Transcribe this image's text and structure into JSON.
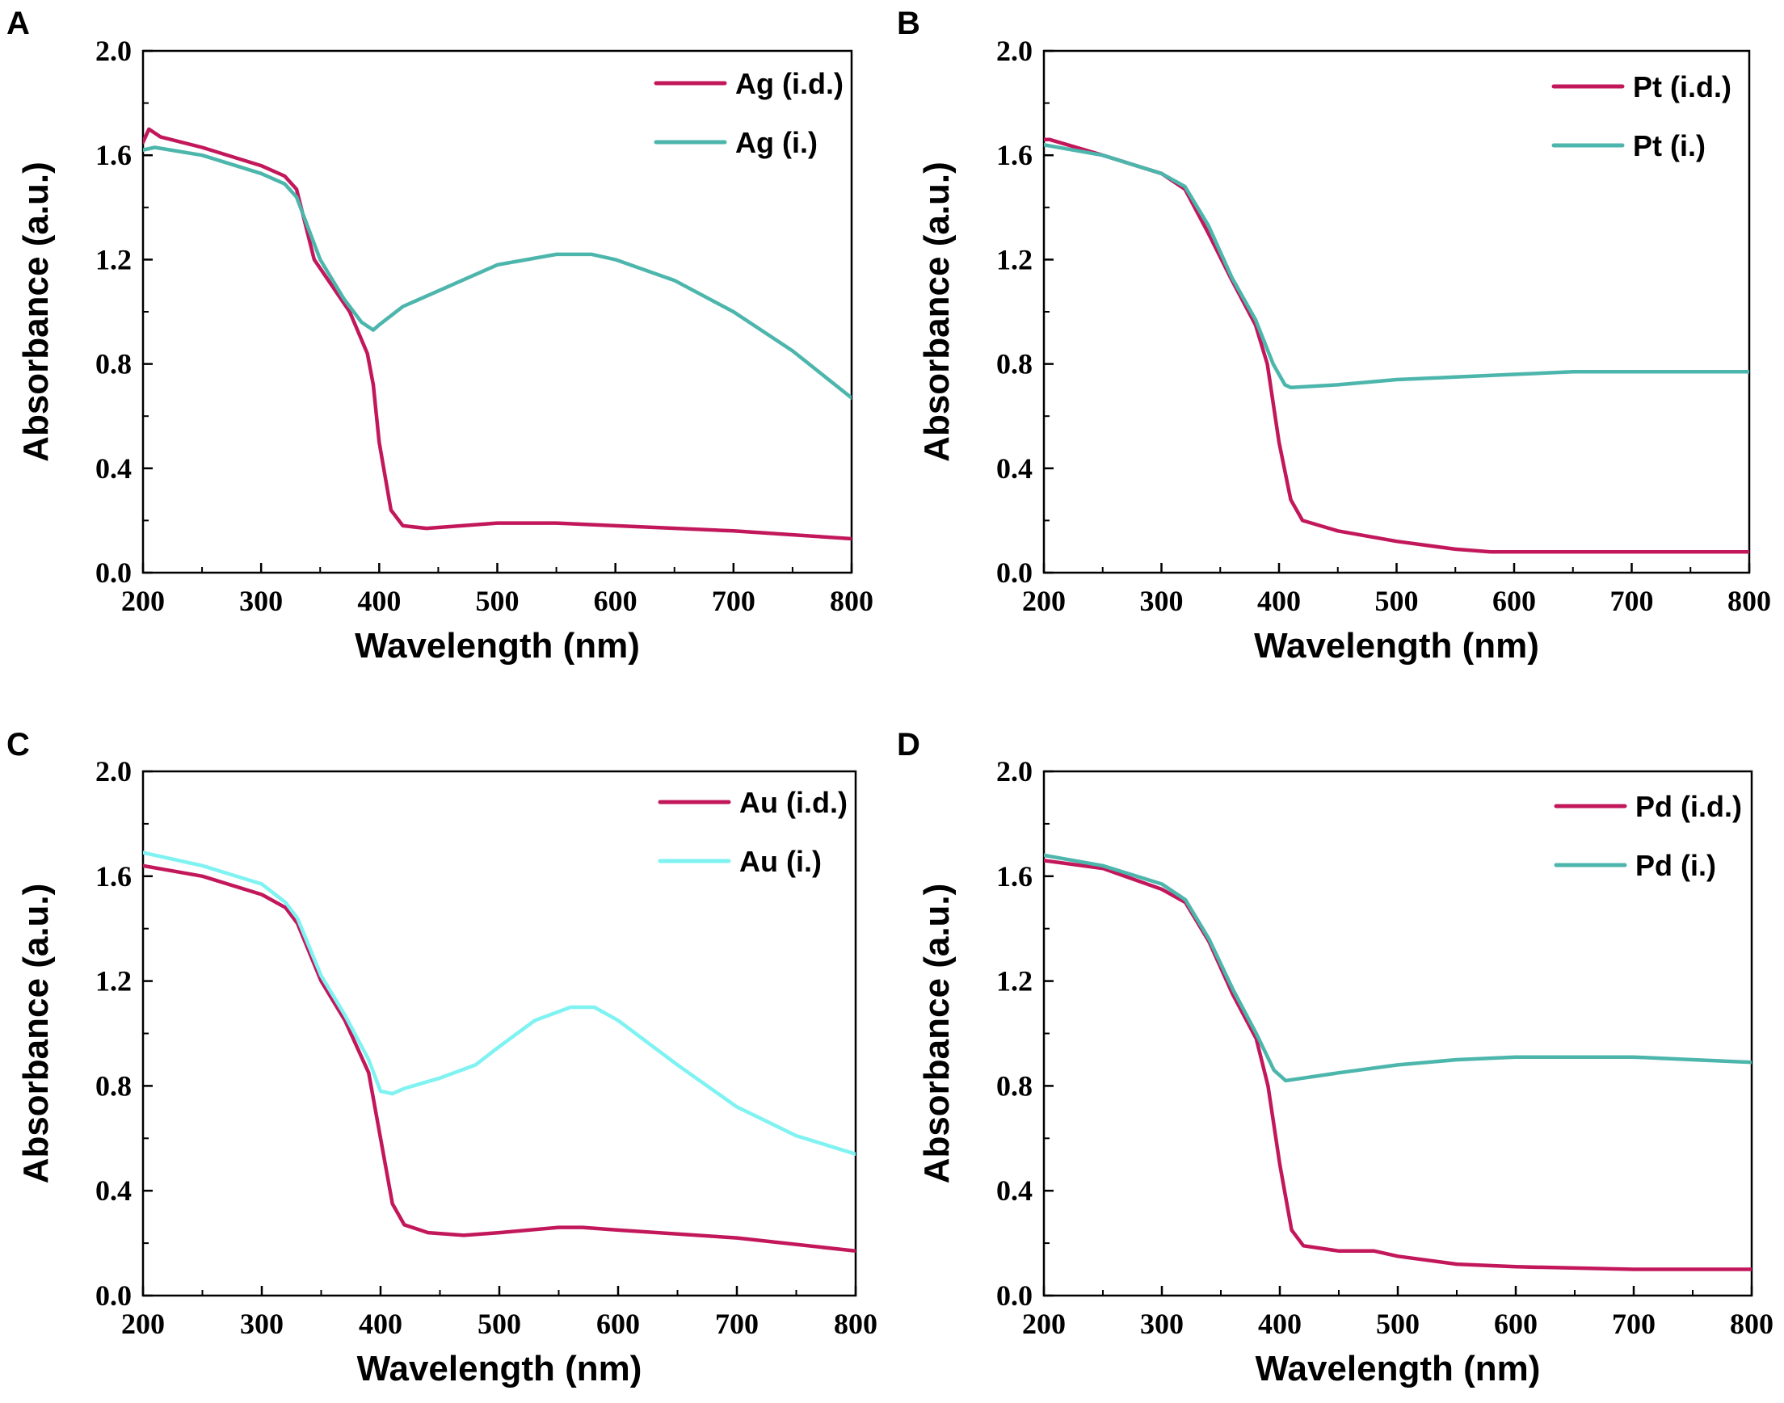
{
  "chart_data": [
    {
      "panel": "A",
      "type": "line",
      "xlabel": "Wavelength (nm)",
      "ylabel": "Absorbance (a.u.)",
      "xlim": [
        200,
        800
      ],
      "ylim": [
        0.0,
        2.0
      ],
      "xticks": [
        "200",
        "300",
        "400",
        "500",
        "600",
        "700",
        "800"
      ],
      "yticks": [
        "0.0",
        "0.4",
        "0.8",
        "1.2",
        "1.6",
        "2.0"
      ],
      "legend_position": "top-right",
      "series": [
        {
          "name": "Ag (i.d.)",
          "color": "#c2185b",
          "x": [
            200,
            205,
            215,
            250,
            300,
            320,
            330,
            345,
            360,
            375,
            390,
            395,
            400,
            410,
            420,
            440,
            470,
            500,
            550,
            600,
            700,
            800
          ],
          "y": [
            1.65,
            1.7,
            1.67,
            1.63,
            1.56,
            1.52,
            1.47,
            1.2,
            1.1,
            1.0,
            0.84,
            0.72,
            0.5,
            0.24,
            0.18,
            0.17,
            0.18,
            0.19,
            0.19,
            0.18,
            0.16,
            0.13
          ]
        },
        {
          "name": "Ag (i.)",
          "color": "#4db6ac",
          "x": [
            200,
            210,
            250,
            300,
            320,
            330,
            350,
            370,
            385,
            395,
            400,
            420,
            450,
            500,
            550,
            580,
            600,
            650,
            700,
            750,
            800
          ],
          "y": [
            1.62,
            1.63,
            1.6,
            1.53,
            1.49,
            1.44,
            1.2,
            1.05,
            0.96,
            0.93,
            0.95,
            1.02,
            1.08,
            1.18,
            1.22,
            1.22,
            1.2,
            1.12,
            1.0,
            0.85,
            0.67
          ]
        }
      ]
    },
    {
      "panel": "B",
      "type": "line",
      "xlabel": "Wavelength (nm)",
      "ylabel": "Absorbance (a.u.)",
      "xlim": [
        200,
        800
      ],
      "ylim": [
        0.0,
        2.0
      ],
      "xticks": [
        "200",
        "300",
        "400",
        "500",
        "600",
        "700",
        "800"
      ],
      "yticks": [
        "0.0",
        "0.4",
        "0.8",
        "1.2",
        "1.6",
        "2.0"
      ],
      "legend_position": "top-right",
      "series": [
        {
          "name": "Pt (i.d.)",
          "color": "#c2185b",
          "x": [
            200,
            205,
            250,
            300,
            320,
            340,
            360,
            380,
            390,
            400,
            410,
            420,
            450,
            500,
            550,
            580,
            600,
            700,
            800
          ],
          "y": [
            1.66,
            1.66,
            1.6,
            1.53,
            1.47,
            1.3,
            1.12,
            0.95,
            0.8,
            0.5,
            0.28,
            0.2,
            0.16,
            0.12,
            0.09,
            0.08,
            0.08,
            0.08,
            0.08
          ]
        },
        {
          "name": "Pt (i.)",
          "color": "#4db6ac",
          "x": [
            200,
            250,
            300,
            320,
            340,
            360,
            380,
            395,
            405,
            410,
            450,
            500,
            550,
            600,
            650,
            700,
            800
          ],
          "y": [
            1.64,
            1.6,
            1.53,
            1.48,
            1.33,
            1.13,
            0.97,
            0.8,
            0.72,
            0.71,
            0.72,
            0.74,
            0.75,
            0.76,
            0.77,
            0.77,
            0.77
          ]
        }
      ]
    },
    {
      "panel": "C",
      "type": "line",
      "xlabel": "Wavelength (nm)",
      "ylabel": "Absorbance (a.u.)",
      "xlim": [
        200,
        800
      ],
      "ylim": [
        0.0,
        2.0
      ],
      "xticks": [
        "200",
        "300",
        "400",
        "500",
        "600",
        "700",
        "800"
      ],
      "yticks": [
        "0.0",
        "0.4",
        "0.8",
        "1.2",
        "1.6",
        "2.0"
      ],
      "legend_position": "top-right",
      "series": [
        {
          "name": "Au (i.d.)",
          "color": "#c2185b",
          "x": [
            200,
            250,
            300,
            320,
            330,
            350,
            370,
            390,
            400,
            410,
            420,
            440,
            470,
            500,
            550,
            570,
            600,
            700,
            800
          ],
          "y": [
            1.64,
            1.6,
            1.53,
            1.48,
            1.42,
            1.2,
            1.05,
            0.85,
            0.6,
            0.35,
            0.27,
            0.24,
            0.23,
            0.24,
            0.26,
            0.26,
            0.25,
            0.22,
            0.17
          ]
        },
        {
          "name": "Au (i.)",
          "color": "#7ff2f2",
          "x": [
            200,
            250,
            300,
            320,
            330,
            350,
            370,
            390,
            400,
            410,
            420,
            450,
            480,
            500,
            530,
            560,
            580,
            600,
            650,
            700,
            750,
            800
          ],
          "y": [
            1.69,
            1.64,
            1.57,
            1.5,
            1.44,
            1.22,
            1.07,
            0.9,
            0.78,
            0.77,
            0.79,
            0.83,
            0.88,
            0.95,
            1.05,
            1.1,
            1.1,
            1.05,
            0.88,
            0.72,
            0.61,
            0.54
          ]
        }
      ]
    },
    {
      "panel": "D",
      "type": "line",
      "xlabel": "Wavelength (nm)",
      "ylabel": "Absorbance (a.u.)",
      "xlim": [
        200,
        800
      ],
      "ylim": [
        0.0,
        2.0
      ],
      "xticks": [
        "200",
        "300",
        "400",
        "500",
        "600",
        "700",
        "800"
      ],
      "yticks": [
        "0.0",
        "0.4",
        "0.8",
        "1.2",
        "1.6",
        "2.0"
      ],
      "legend_position": "top-right",
      "series": [
        {
          "name": "Pd (i.d.)",
          "color": "#c2185b",
          "x": [
            200,
            250,
            300,
            320,
            340,
            360,
            380,
            390,
            400,
            410,
            420,
            450,
            480,
            500,
            550,
            600,
            700,
            800
          ],
          "y": [
            1.66,
            1.63,
            1.55,
            1.5,
            1.35,
            1.15,
            0.98,
            0.8,
            0.5,
            0.25,
            0.19,
            0.17,
            0.17,
            0.15,
            0.12,
            0.11,
            0.1,
            0.1
          ]
        },
        {
          "name": "Pd (i.)",
          "color": "#4db6ac",
          "x": [
            200,
            250,
            300,
            320,
            340,
            360,
            380,
            395,
            405,
            420,
            450,
            500,
            550,
            600,
            650,
            700,
            750,
            800
          ],
          "y": [
            1.68,
            1.64,
            1.57,
            1.51,
            1.36,
            1.17,
            1.0,
            0.86,
            0.82,
            0.83,
            0.85,
            0.88,
            0.9,
            0.91,
            0.91,
            0.91,
            0.9,
            0.89
          ]
        }
      ]
    }
  ]
}
